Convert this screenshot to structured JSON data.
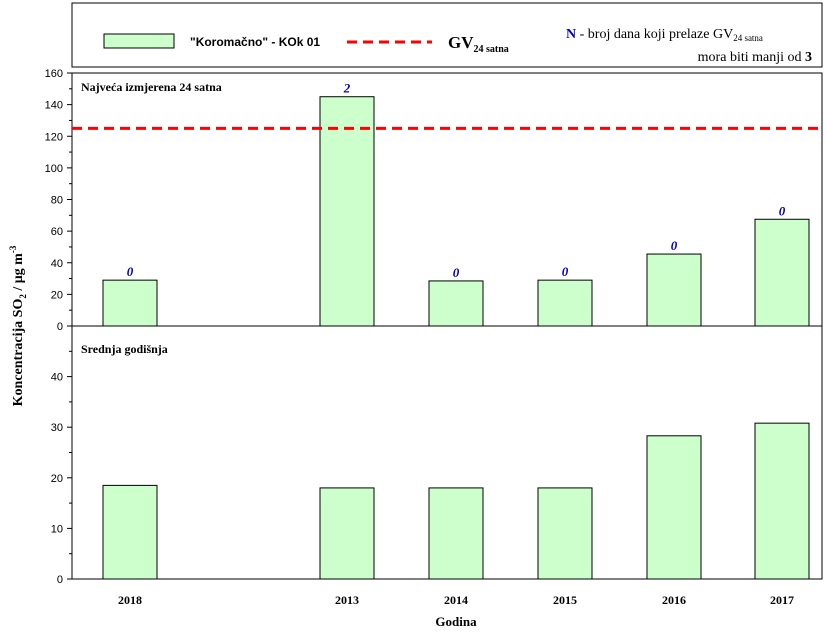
{
  "legend": {
    "series_label": "\"Koromačno\" - KOk 01",
    "gv_label": "GV",
    "gv_sub": "24 satna",
    "n_letter": "N",
    "n_text": " - broj dana koji prelaze GV",
    "n_sub": "24 satna",
    "n_line2": "mora biti manji od ",
    "n_limit": "3"
  },
  "colors": {
    "bar_fill": "#ccffcc",
    "bar_stroke": "#000000",
    "limit_line": "#ff0000",
    "count_label": "#0000cc"
  },
  "chart_data": [
    {
      "type": "bar",
      "panel_label": "Najveća izmjerena 24 satna",
      "categories": [
        "2018",
        "2013",
        "2014",
        "2015",
        "2016",
        "2017"
      ],
      "values": [
        29,
        145,
        28.5,
        29,
        45.5,
        67.5
      ],
      "exceedances": [
        "0",
        "2",
        "0",
        "0",
        "0",
        "0"
      ],
      "limit": 125,
      "ylim": [
        0,
        160
      ],
      "yticks": [
        "0",
        "20",
        "40",
        "60",
        "80",
        "100",
        "120",
        "140",
        "160"
      ]
    },
    {
      "type": "bar",
      "panel_label": "Srednja godišnja",
      "categories": [
        "2018",
        "2013",
        "2014",
        "2015",
        "2016",
        "2017"
      ],
      "values": [
        18.5,
        18,
        18,
        18,
        28.3,
        30.8
      ],
      "ylim": [
        0,
        50
      ],
      "yticks": [
        "0",
        "10",
        "20",
        "30",
        "40"
      ]
    }
  ],
  "axes": {
    "xlabel": "Godina",
    "ylabel_main": "Koncentracija SO",
    "ylabel_sub": "2",
    "ylabel_unit": " / μg m",
    "ylabel_sup": "-3"
  }
}
